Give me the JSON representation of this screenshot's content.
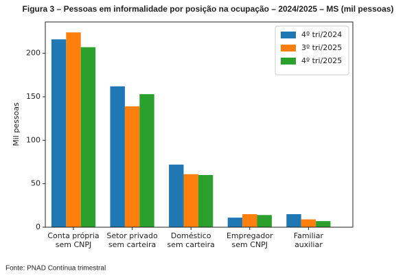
{
  "chart_data": {
    "type": "bar",
    "title": "Figura 3 – Pessoas em informalidade por posição na ocupação – 2024/2025 – MS (mil pessoas)",
    "source": "Fonte: PNAD Contínua trimestral",
    "y_label": "Mil pessoas",
    "categories": [
      [
        "Conta própria",
        "sem CNPJ"
      ],
      [
        "Setor privado",
        "sem carteira"
      ],
      [
        "Doméstico",
        "sem carteira"
      ],
      [
        "Empregador",
        "sem CNPJ"
      ],
      [
        "Familiar",
        "auxiliar"
      ]
    ],
    "series": [
      {
        "name": "4º tri/2024",
        "color": "#1f77b4",
        "values": [
          216,
          162,
          72,
          11,
          15
        ]
      },
      {
        "name": "3º tri/2025",
        "color": "#ff7f0e",
        "values": [
          224,
          139,
          61,
          15,
          9
        ]
      },
      {
        "name": "4º tri/2025",
        "color": "#2ca02c",
        "values": [
          207,
          153,
          60,
          14,
          7
        ]
      }
    ],
    "ylim": [
      0,
      236
    ],
    "yticks": [
      0,
      50,
      100,
      150,
      200
    ],
    "legend": "upper right"
  }
}
